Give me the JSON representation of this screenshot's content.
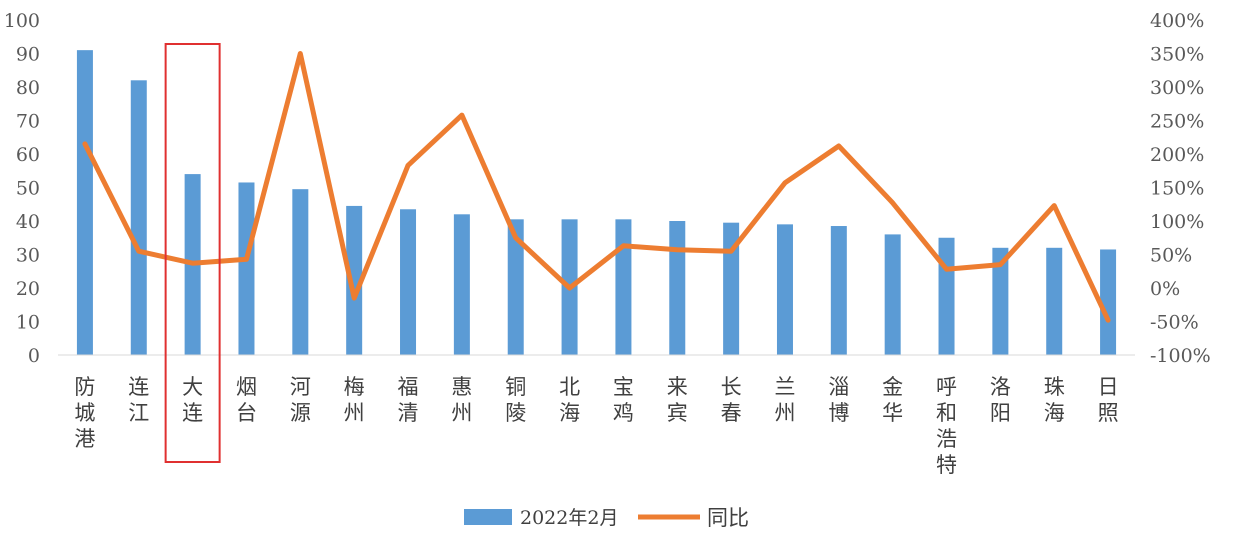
{
  "chart_data": {
    "type": "bar",
    "categories": [
      "防城港",
      "连江",
      "大连",
      "烟台",
      "河源",
      "梅州",
      "福清",
      "惠州",
      "铜陵",
      "北海",
      "宝鸡",
      "来宾",
      "长春",
      "兰州",
      "淄博",
      "金华",
      "呼和浩特",
      "洛阳",
      "珠海",
      "日照"
    ],
    "series": [
      {
        "name": "2022年2月",
        "type": "bar",
        "axis": "left",
        "color": "#5B9BD5",
        "values": [
          91,
          82,
          54,
          51.5,
          49.5,
          44.5,
          43.5,
          42,
          40.5,
          40.5,
          40.5,
          40,
          39.5,
          39,
          38.5,
          36,
          35,
          32,
          32,
          31.5
        ]
      },
      {
        "name": "同比",
        "type": "line",
        "axis": "right",
        "color": "#ED7D31",
        "values": [
          215,
          55,
          37,
          43,
          350,
          -15,
          183,
          258,
          75,
          0,
          63,
          57,
          55,
          157,
          212,
          127,
          28,
          35,
          123,
          -48
        ]
      }
    ],
    "y_left": {
      "min": 0,
      "max": 100,
      "ticks": [
        "0",
        "10",
        "20",
        "30",
        "40",
        "50",
        "60",
        "70",
        "80",
        "90",
        "100"
      ]
    },
    "y_right": {
      "min": -100,
      "max": 400,
      "ticks": [
        "-100%",
        "-50%",
        "0%",
        "50%",
        "100%",
        "150%",
        "200%",
        "250%",
        "300%",
        "350%",
        "400%"
      ]
    },
    "highlight_category": "大连",
    "highlight_color": "#E03030",
    "legend_position": "bottom",
    "grid": false
  }
}
